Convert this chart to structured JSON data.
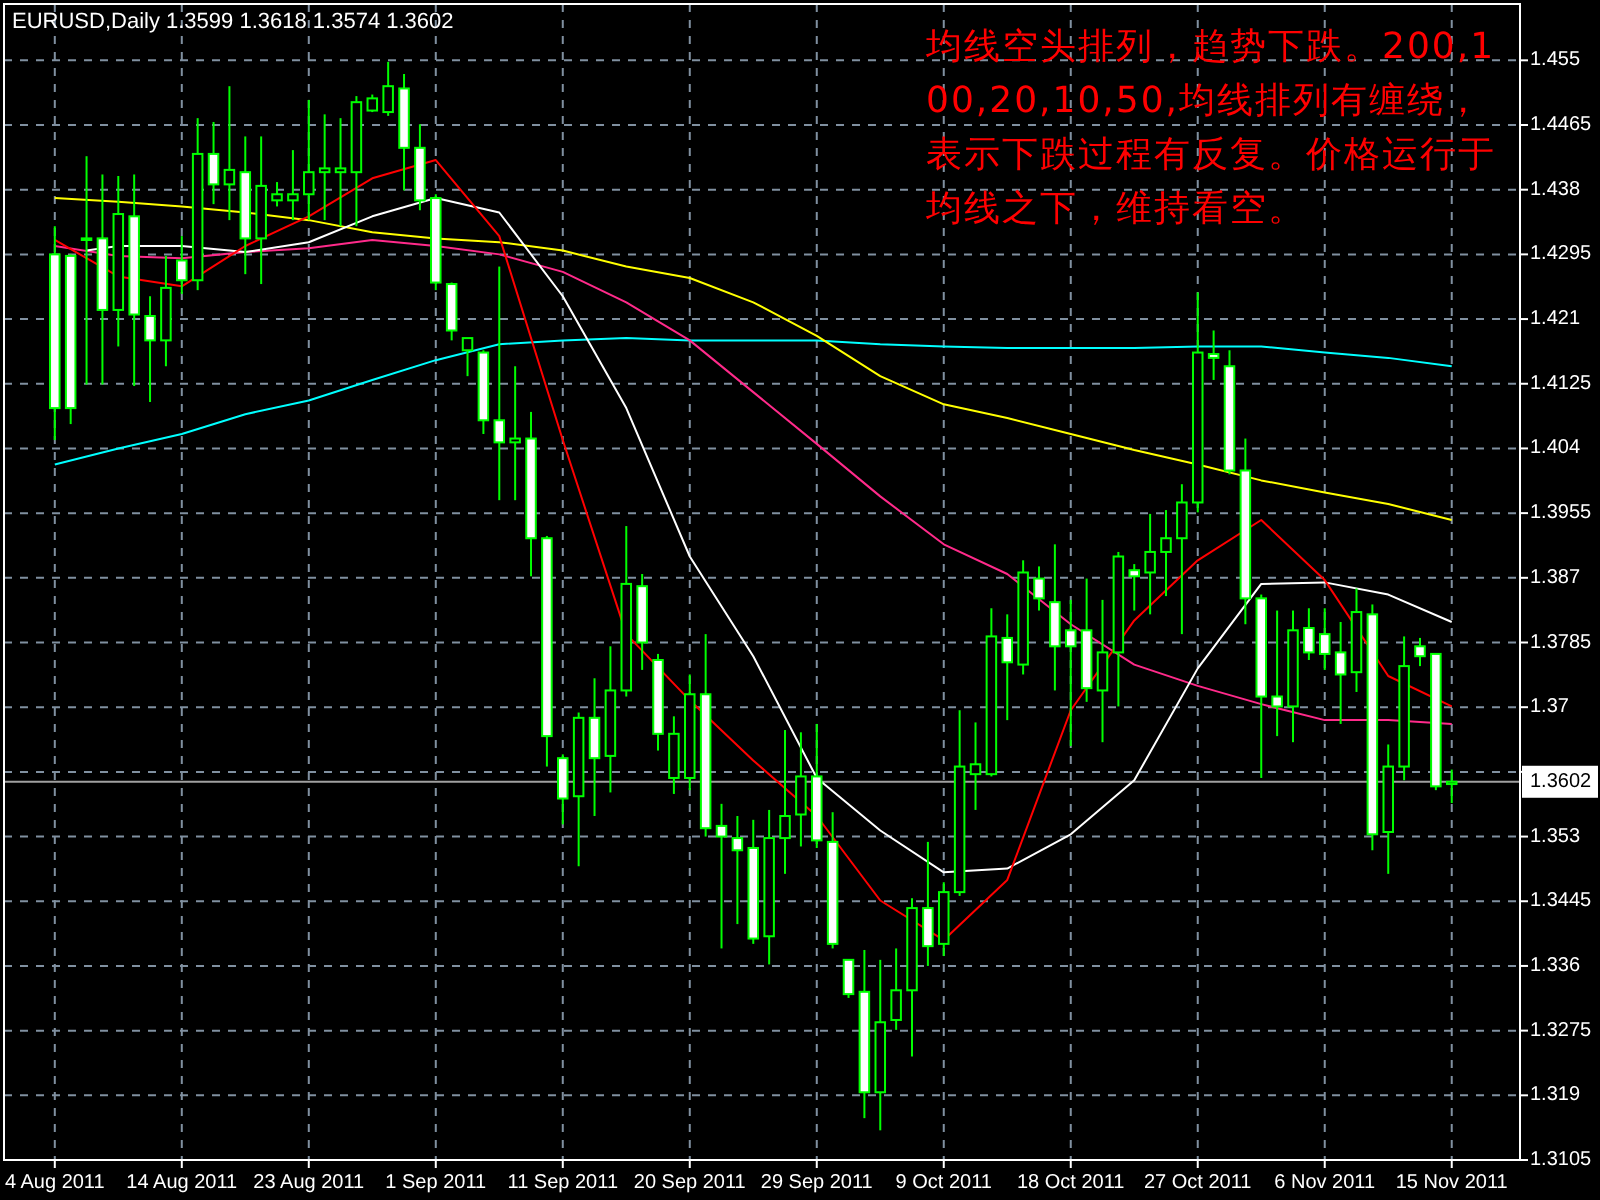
{
  "chart_data": {
    "type": "candlestick",
    "title": "EURUSD,Daily  1.3599 1.3618 1.3574 1.3602",
    "categories": [
      "4 Aug 2011",
      null,
      null,
      null,
      null,
      null,
      null,
      null,
      "14 Aug 2011",
      null,
      null,
      null,
      null,
      null,
      null,
      null,
      "23 Aug 2011",
      null,
      null,
      null,
      null,
      null,
      null,
      null,
      "1 Sep 2011",
      null,
      null,
      null,
      null,
      null,
      null,
      null,
      "11 Sep 2011",
      null,
      null,
      null,
      null,
      null,
      null,
      null,
      "20 Sep 2011",
      null,
      null,
      null,
      null,
      null,
      null,
      null,
      "29 Sep 2011",
      null,
      null,
      null,
      null,
      null,
      null,
      null,
      "9 Oct 2011",
      null,
      null,
      null,
      null,
      null,
      null,
      null,
      "18 Oct 2011",
      null,
      null,
      null,
      null,
      null,
      null,
      null,
      "27 Oct 2011",
      null,
      null,
      null,
      null,
      null,
      null,
      null,
      "6 Nov 2011",
      null,
      null,
      null,
      null,
      null,
      null,
      null,
      "15 Nov 2011"
    ],
    "ohlc": [
      [
        1.4295,
        1.4332,
        1.4051,
        1.4093
      ],
      [
        1.4293,
        1.4295,
        1.4072,
        1.4093
      ],
      [
        1.4316,
        1.4424,
        1.4124,
        1.4314
      ],
      [
        1.4316,
        1.44,
        1.4124,
        1.4222
      ],
      [
        1.4222,
        1.4398,
        1.4174,
        1.4348
      ],
      [
        1.4345,
        1.44,
        1.4122,
        1.4216
      ],
      [
        1.4214,
        1.424,
        1.4101,
        1.4182
      ],
      [
        1.4182,
        1.4293,
        1.4148,
        1.4251
      ],
      [
        1.4287,
        1.4319,
        1.4243,
        1.4261
      ],
      [
        1.4261,
        1.4474,
        1.4248,
        1.4427
      ],
      [
        1.4427,
        1.4469,
        1.4361,
        1.4387
      ],
      [
        1.4387,
        1.4516,
        1.434,
        1.4406
      ],
      [
        1.4403,
        1.445,
        1.4269,
        1.4316
      ],
      [
        1.4316,
        1.445,
        1.4256,
        1.4385
      ],
      [
        1.4366,
        1.439,
        1.4358,
        1.4374
      ],
      [
        1.4366,
        1.4432,
        1.434,
        1.4374
      ],
      [
        1.4374,
        1.4498,
        1.434,
        1.4403
      ],
      [
        1.4403,
        1.4479,
        1.434,
        1.4408
      ],
      [
        1.4403,
        1.4474,
        1.4332,
        1.4408
      ],
      [
        1.4403,
        1.4503,
        1.4332,
        1.4495
      ],
      [
        1.4484,
        1.4505,
        1.4482,
        1.45
      ],
      [
        1.4482,
        1.4548,
        1.4477,
        1.4516
      ],
      [
        1.4513,
        1.4532,
        1.4379,
        1.4435
      ],
      [
        1.4435,
        1.4466,
        1.4353,
        1.4366
      ],
      [
        1.4369,
        1.4374,
        1.4248,
        1.4258
      ],
      [
        1.4256,
        1.4258,
        1.4182,
        1.4195
      ],
      [
        1.4169,
        1.4185,
        1.4135,
        1.4185
      ],
      [
        1.4166,
        1.4169,
        1.4059,
        1.4077
      ],
      [
        1.4077,
        1.4279,
        1.3972,
        1.4048
      ],
      [
        1.4048,
        1.4148,
        1.3972,
        1.4053
      ],
      [
        1.4053,
        1.4088,
        1.3872,
        1.3922
      ],
      [
        1.3922,
        1.3925,
        1.3622,
        1.3662
      ],
      [
        1.3633,
        1.3638,
        1.3546,
        1.358
      ],
      [
        1.3583,
        1.3693,
        1.3491,
        1.3686
      ],
      [
        1.3686,
        1.3738,
        1.3557,
        1.3633
      ],
      [
        1.3636,
        1.378,
        1.3588,
        1.3722
      ],
      [
        1.3722,
        1.3938,
        1.3714,
        1.3862
      ],
      [
        1.3859,
        1.3875,
        1.3749,
        1.3785
      ],
      [
        1.3762,
        1.377,
        1.3643,
        1.3665
      ],
      [
        1.3607,
        1.3688,
        1.3586,
        1.3665
      ],
      [
        1.3607,
        1.3743,
        1.3591,
        1.3717
      ],
      [
        1.3717,
        1.3796,
        1.353,
        1.3541
      ],
      [
        1.3544,
        1.3573,
        1.3383,
        1.353
      ],
      [
        1.3528,
        1.3557,
        1.3415,
        1.3512
      ],
      [
        1.3515,
        1.3552,
        1.3389,
        1.3396
      ],
      [
        1.3399,
        1.3565,
        1.3362,
        1.3528
      ],
      [
        1.3528,
        1.367,
        1.3481,
        1.3557
      ],
      [
        1.3559,
        1.3667,
        1.3517,
        1.3609
      ],
      [
        1.3609,
        1.3678,
        1.3515,
        1.3525
      ],
      [
        1.3523,
        1.3562,
        1.3383,
        1.3389
      ],
      [
        1.3368,
        1.3368,
        1.3318,
        1.3323
      ],
      [
        1.3326,
        1.3381,
        1.316,
        1.3194
      ],
      [
        1.3194,
        1.3368,
        1.3144,
        1.3286
      ],
      [
        1.3289,
        1.3383,
        1.3276,
        1.3328
      ],
      [
        1.3328,
        1.3449,
        1.3241,
        1.3436
      ],
      [
        1.3436,
        1.3523,
        1.336,
        1.3386
      ],
      [
        1.3389,
        1.347,
        1.3373,
        1.3457
      ],
      [
        1.3457,
        1.3696,
        1.3452,
        1.3622
      ],
      [
        1.3612,
        1.368,
        1.3565,
        1.3625
      ],
      [
        1.3612,
        1.383,
        1.3609,
        1.3793
      ],
      [
        1.3791,
        1.3822,
        1.3683,
        1.3759
      ],
      [
        1.3756,
        1.3893,
        1.3743,
        1.3877
      ],
      [
        1.3869,
        1.3885,
        1.3827,
        1.3843
      ],
      [
        1.3838,
        1.3914,
        1.3722,
        1.378
      ],
      [
        1.3801,
        1.3841,
        1.3649,
        1.378
      ],
      [
        1.3801,
        1.3869,
        1.3707,
        1.3725
      ],
      [
        1.3722,
        1.3841,
        1.3654,
        1.3772
      ],
      [
        1.3772,
        1.3904,
        1.3701,
        1.3898
      ],
      [
        1.388,
        1.3888,
        1.3827,
        1.3872
      ],
      [
        1.3877,
        1.3954,
        1.3822,
        1.3904
      ],
      [
        1.3904,
        1.3959,
        1.3846,
        1.3922
      ],
      [
        1.3922,
        1.3993,
        1.3796,
        1.3969
      ],
      [
        1.3969,
        1.4245,
        1.3956,
        1.4166
      ],
      [
        1.4164,
        1.4195,
        1.413,
        1.4159
      ],
      [
        1.4148,
        1.4169,
        1.4006,
        1.4011
      ],
      [
        1.4011,
        1.4053,
        1.3809,
        1.3843
      ],
      [
        1.3843,
        1.3848,
        1.3607,
        1.3714
      ],
      [
        1.3714,
        1.3827,
        1.3662,
        1.3701
      ],
      [
        1.3701,
        1.3827,
        1.3654,
        1.3801
      ],
      [
        1.3804,
        1.383,
        1.3762,
        1.3772
      ],
      [
        1.3796,
        1.383,
        1.3749,
        1.377
      ],
      [
        1.3772,
        1.3812,
        1.3678,
        1.3743
      ],
      [
        1.3746,
        1.3856,
        1.372,
        1.3825
      ],
      [
        1.3822,
        1.3835,
        1.3512,
        1.3533
      ],
      [
        1.3536,
        1.3651,
        1.3481,
        1.3622
      ],
      [
        1.3622,
        1.3793,
        1.3604,
        1.3754
      ],
      [
        1.378,
        1.3791,
        1.3754,
        1.3767
      ],
      [
        1.377,
        1.377,
        1.3591,
        1.3596
      ],
      [
        1.3599,
        1.3618,
        1.3574,
        1.3602
      ]
    ],
    "series": [
      {
        "type": "line",
        "color": "#00ffff",
        "values": [
          1.4019,
          null,
          null,
          null,
          1.404,
          null,
          null,
          null,
          1.4059,
          null,
          null,
          null,
          1.4085,
          null,
          null,
          null,
          1.4103,
          null,
          null,
          null,
          1.413,
          null,
          null,
          null,
          1.4156,
          null,
          null,
          null,
          1.4177,
          null,
          null,
          null,
          1.4182,
          null,
          null,
          null,
          1.4185,
          null,
          null,
          null,
          1.4182,
          null,
          null,
          null,
          1.4182,
          null,
          null,
          null,
          1.4182,
          null,
          null,
          null,
          1.4177,
          null,
          null,
          null,
          1.4174,
          null,
          null,
          null,
          1.4172,
          null,
          null,
          null,
          1.4172,
          null,
          null,
          null,
          1.4172,
          null,
          null,
          null,
          1.4174,
          null,
          null,
          null,
          1.4174,
          null,
          null,
          null,
          1.4166,
          null,
          null,
          null,
          1.4159,
          null,
          null,
          null,
          1.4148
        ]
      },
      {
        "type": "line",
        "color": "#ffff00",
        "values": [
          1.4369,
          null,
          null,
          null,
          1.4364,
          null,
          null,
          null,
          1.4358,
          null,
          null,
          null,
          1.435,
          null,
          null,
          null,
          1.434,
          null,
          null,
          null,
          1.4324,
          null,
          null,
          null,
          1.4316,
          null,
          null,
          null,
          1.4311,
          null,
          null,
          null,
          1.43,
          null,
          null,
          null,
          1.4279,
          null,
          null,
          null,
          1.4264,
          null,
          null,
          null,
          1.4232,
          null,
          null,
          null,
          1.4188,
          null,
          null,
          null,
          1.4135,
          null,
          null,
          null,
          1.4098,
          null,
          null,
          null,
          1.408,
          null,
          null,
          null,
          1.4059,
          null,
          null,
          null,
          1.4038,
          null,
          null,
          null,
          1.4019,
          null,
          null,
          null,
          1.3998,
          null,
          null,
          null,
          1.3982,
          null,
          null,
          null,
          1.3967,
          null,
          null,
          null,
          1.3946
        ]
      },
      {
        "type": "line",
        "color": "#ff2a8a",
        "values": [
          1.4306,
          null,
          null,
          null,
          1.4293,
          null,
          null,
          null,
          1.429,
          null,
          null,
          null,
          1.4298,
          null,
          null,
          null,
          1.4303,
          null,
          null,
          null,
          1.4314,
          null,
          null,
          null,
          1.4306,
          null,
          null,
          null,
          1.4295,
          null,
          null,
          null,
          1.4272,
          null,
          null,
          null,
          1.4232,
          null,
          null,
          null,
          1.4182,
          null,
          null,
          null,
          1.4114,
          null,
          null,
          null,
          1.4046,
          null,
          null,
          null,
          1.3977,
          null,
          null,
          null,
          1.3914,
          null,
          null,
          null,
          1.3875,
          null,
          null,
          null,
          1.3809,
          null,
          null,
          null,
          1.3756,
          null,
          null,
          null,
          1.3728,
          null,
          null,
          null,
          1.3704,
          null,
          null,
          null,
          1.3683,
          null,
          null,
          null,
          1.3683,
          null,
          null,
          null,
          1.3678
        ]
      },
      {
        "type": "line",
        "color": "#ffffff",
        "values": [
          null,
          null,
          1.43,
          null,
          1.4306,
          null,
          null,
          null,
          1.4306,
          null,
          null,
          null,
          1.4298,
          null,
          null,
          null,
          1.4311,
          null,
          null,
          null,
          1.4345,
          null,
          null,
          null,
          1.4369,
          null,
          null,
          null,
          1.435,
          null,
          null,
          null,
          1.424,
          null,
          null,
          null,
          1.4093,
          null,
          null,
          null,
          1.3898,
          null,
          null,
          null,
          1.3767,
          null,
          null,
          null,
          1.3607,
          null,
          null,
          null,
          1.3538,
          null,
          null,
          null,
          1.3483,
          null,
          null,
          null,
          1.3488,
          null,
          null,
          null,
          1.3533,
          null,
          null,
          null,
          1.3604,
          null,
          null,
          null,
          1.3751,
          null,
          null,
          null,
          1.3862,
          null,
          null,
          null,
          1.3864,
          null,
          null,
          null,
          1.3848,
          null,
          null,
          null,
          1.3812
        ]
      },
      {
        "type": "line",
        "color": "#ff0000",
        "values": [
          1.4314,
          null,
          null,
          null,
          1.4266,
          null,
          null,
          null,
          1.4253,
          null,
          null,
          null,
          1.4306,
          null,
          null,
          null,
          1.4345,
          null,
          null,
          null,
          1.4395,
          null,
          null,
          null,
          1.4419,
          null,
          null,
          null,
          1.4319,
          null,
          null,
          null,
          1.4051,
          null,
          null,
          null,
          1.3796,
          null,
          null,
          null,
          1.3709,
          null,
          null,
          null,
          1.363,
          null,
          null,
          null,
          1.3557,
          null,
          null,
          null,
          1.3446,
          null,
          null,
          null,
          1.3394,
          null,
          null,
          null,
          1.3473,
          null,
          null,
          null,
          1.3696,
          null,
          null,
          null,
          1.3814,
          null,
          null,
          null,
          1.3893,
          null,
          null,
          null,
          1.3946,
          null,
          null,
          null,
          1.3867,
          null,
          null,
          null,
          1.3741,
          null,
          null,
          null,
          1.3701
        ]
      }
    ],
    "ylim": [
      1.3105,
      1.4624
    ],
    "yticks": [
      1.3105,
      1.319,
      1.3275,
      1.336,
      1.3445,
      1.353,
      {
        "value": 1.3615,
        "label": null
      },
      1.37,
      1.3785,
      1.387,
      1.3955,
      1.404,
      1.4125,
      1.421,
      1.4295,
      1.438,
      1.4465,
      1.455
    ],
    "ref_lines": [
      {
        "axis": "y",
        "value": 1.3602,
        "label": "1.3602",
        "color": "#a0a0a0"
      }
    ],
    "annotations": [
      "均线空头排列，趋势下跌。200,100,20,10,50,均线排列有缠绕，表示下跌过程有反复。价格运行于均线之下，维持看空。"
    ],
    "grid": true
  }
}
